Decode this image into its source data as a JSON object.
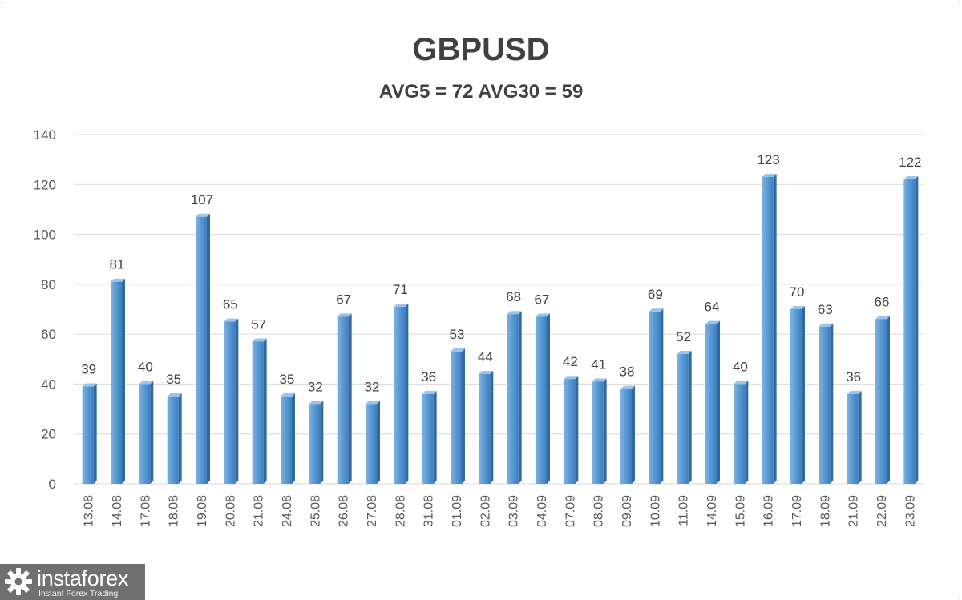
{
  "chart_data": {
    "type": "bar",
    "title": "GBPUSD",
    "subtitle": "AVG5 = 72 AVG30 = 59",
    "categories": [
      "13.08",
      "14.08",
      "17.08",
      "18.08",
      "19.08",
      "20.08",
      "21.08",
      "24.08",
      "25.08",
      "26.08",
      "27.08",
      "28.08",
      "31.08",
      "01.09",
      "02.09",
      "03.09",
      "04.09",
      "07.09",
      "08.09",
      "09.09",
      "10.09",
      "11.09",
      "14.09",
      "15.09",
      "16.09",
      "17.09",
      "18.09",
      "21.09",
      "22.09",
      "23.09"
    ],
    "values": [
      39,
      81,
      40,
      35,
      107,
      65,
      57,
      35,
      32,
      67,
      32,
      71,
      36,
      53,
      44,
      68,
      67,
      42,
      41,
      38,
      69,
      52,
      64,
      40,
      123,
      70,
      63,
      36,
      66,
      122
    ],
    "ylim": [
      0,
      140
    ],
    "yticks": [
      0,
      20,
      40,
      60,
      80,
      100,
      120,
      140
    ],
    "grid": true,
    "legend": "none",
    "bar_color": "#5b9bd5",
    "data_labels": true
  },
  "branding": {
    "logo_icon": "gear-icon",
    "name": "instaforex",
    "tagline": "Instant Forex Trading"
  }
}
